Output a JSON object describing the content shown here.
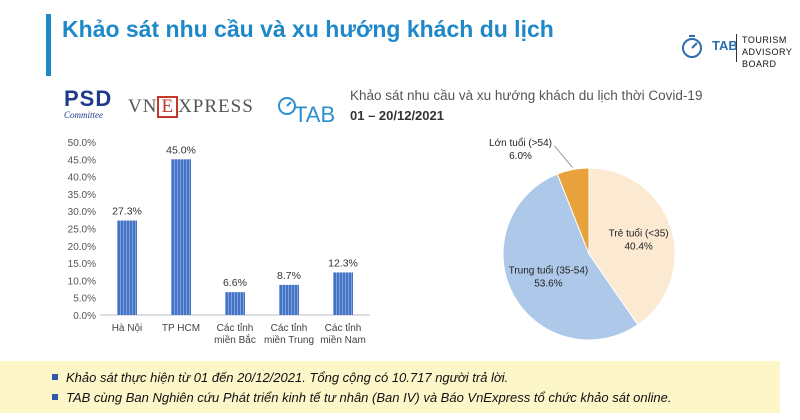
{
  "header": {
    "title": "Khảo sát nhu cầu và xu hướng khách du lịch",
    "accent_color": "#1e88c9",
    "title_color": "#1e88c9"
  },
  "logos": {
    "psd_main": "PSD",
    "psd_sub": "Committee",
    "vnexpress_pre": "VN",
    "vnexpress_e": "E",
    "vnexpress_post": "XPRESS",
    "tab_mark": "TAB",
    "tab_board_line1": "TOURISM",
    "tab_board_line2": "ADVISORY BOARD"
  },
  "survey": {
    "subtitle": "Khảo sát nhu cầu và xu hướng khách du lịch thời Covid-19",
    "date_range": "01 – 20/12/2021"
  },
  "chart_data": [
    {
      "type": "bar",
      "categories": [
        "Hà Nội",
        "TP HCM",
        "Các tỉnh miền Bắc",
        "Các tỉnh miền Trung",
        "Các tỉnh miền Nam"
      ],
      "category_lines": [
        [
          "Hà Nội"
        ],
        [
          "TP HCM"
        ],
        [
          "Các tỉnh",
          "miền Bắc"
        ],
        [
          "Các tỉnh",
          "miền Trung"
        ],
        [
          "Các tỉnh",
          "miền Nam"
        ]
      ],
      "values": [
        27.3,
        45.0,
        6.6,
        8.7,
        12.3
      ],
      "value_labels": [
        "27.3%",
        "45.0%",
        "6.6%",
        "8.7%",
        "12.3%"
      ],
      "ylim": [
        0,
        50
      ],
      "yticks": [
        "0.0%",
        "5.0%",
        "10.0%",
        "15.0%",
        "20.0%",
        "25.0%",
        "30.0%",
        "35.0%",
        "40.0%",
        "45.0%",
        "50.0%"
      ],
      "grid": false,
      "bar_color": "#4472c4"
    },
    {
      "type": "pie",
      "slices": [
        {
          "label": "Trẻ tuổi (<35)",
          "value": 40.4,
          "value_label": "40.4%",
          "color": "#fbe9d2"
        },
        {
          "label": "Trung tuổi (35-54)",
          "value": 53.6,
          "value_label": "53.6%",
          "color": "#adc8e8"
        },
        {
          "label": "Lớn tuổi (>54)",
          "value": 6.0,
          "value_label": "6.0%",
          "color": "#e8a23b"
        }
      ]
    }
  ],
  "notes": [
    "Khảo sát thực hiện từ 01 đến 20/12/2021. Tổng cộng có 10.717 người trả lời.",
    "TAB cùng Ban Nghiên cứu Phát triển kinh tế tư nhân (Ban IV) và Báo VnExpress tổ chức khảo sát online."
  ],
  "notes_bg": "#fdf6c9"
}
